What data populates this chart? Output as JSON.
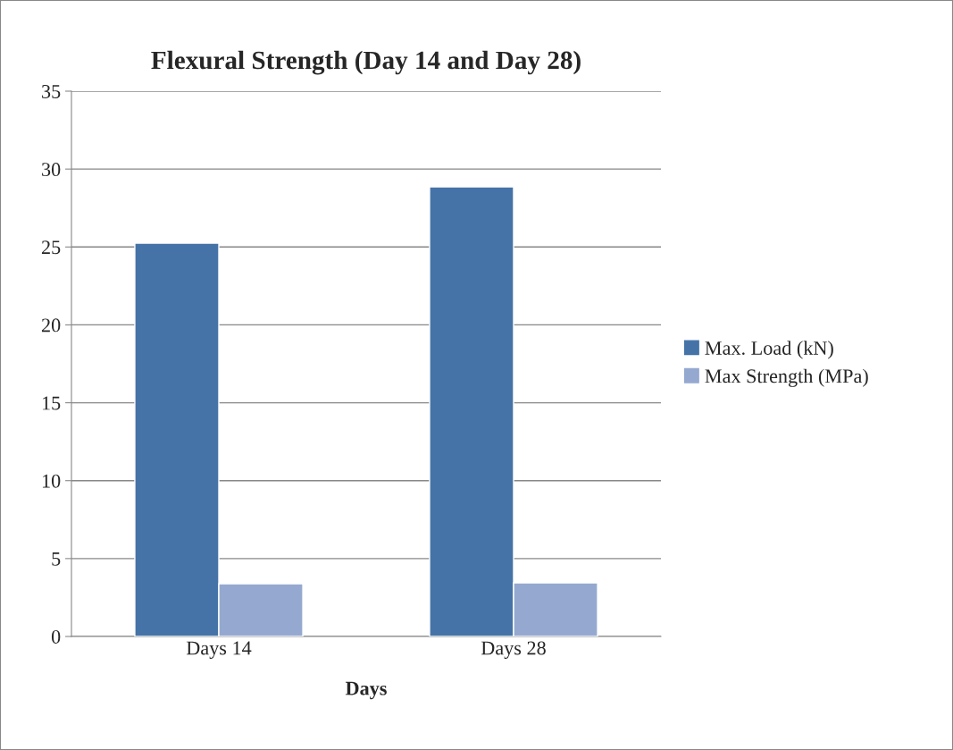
{
  "chart_data": {
    "type": "bar",
    "title": "Flexural Strength (Day 14 and Day 28)",
    "xlabel": "Days",
    "categories": [
      "Days 14",
      "Days 28"
    ],
    "series": [
      {
        "name": "Max. Load (kN)",
        "color": "#4573a7",
        "values": [
          25.24,
          28.86
        ]
      },
      {
        "name": "Max Strength (MPa)",
        "color": "#95a9d0",
        "values": [
          3.38,
          3.44
        ]
      }
    ],
    "ylim": [
      0,
      35
    ],
    "yticks": [
      0,
      5,
      10,
      15,
      20,
      25,
      30,
      35
    ],
    "grid": "y",
    "legend": "right"
  }
}
